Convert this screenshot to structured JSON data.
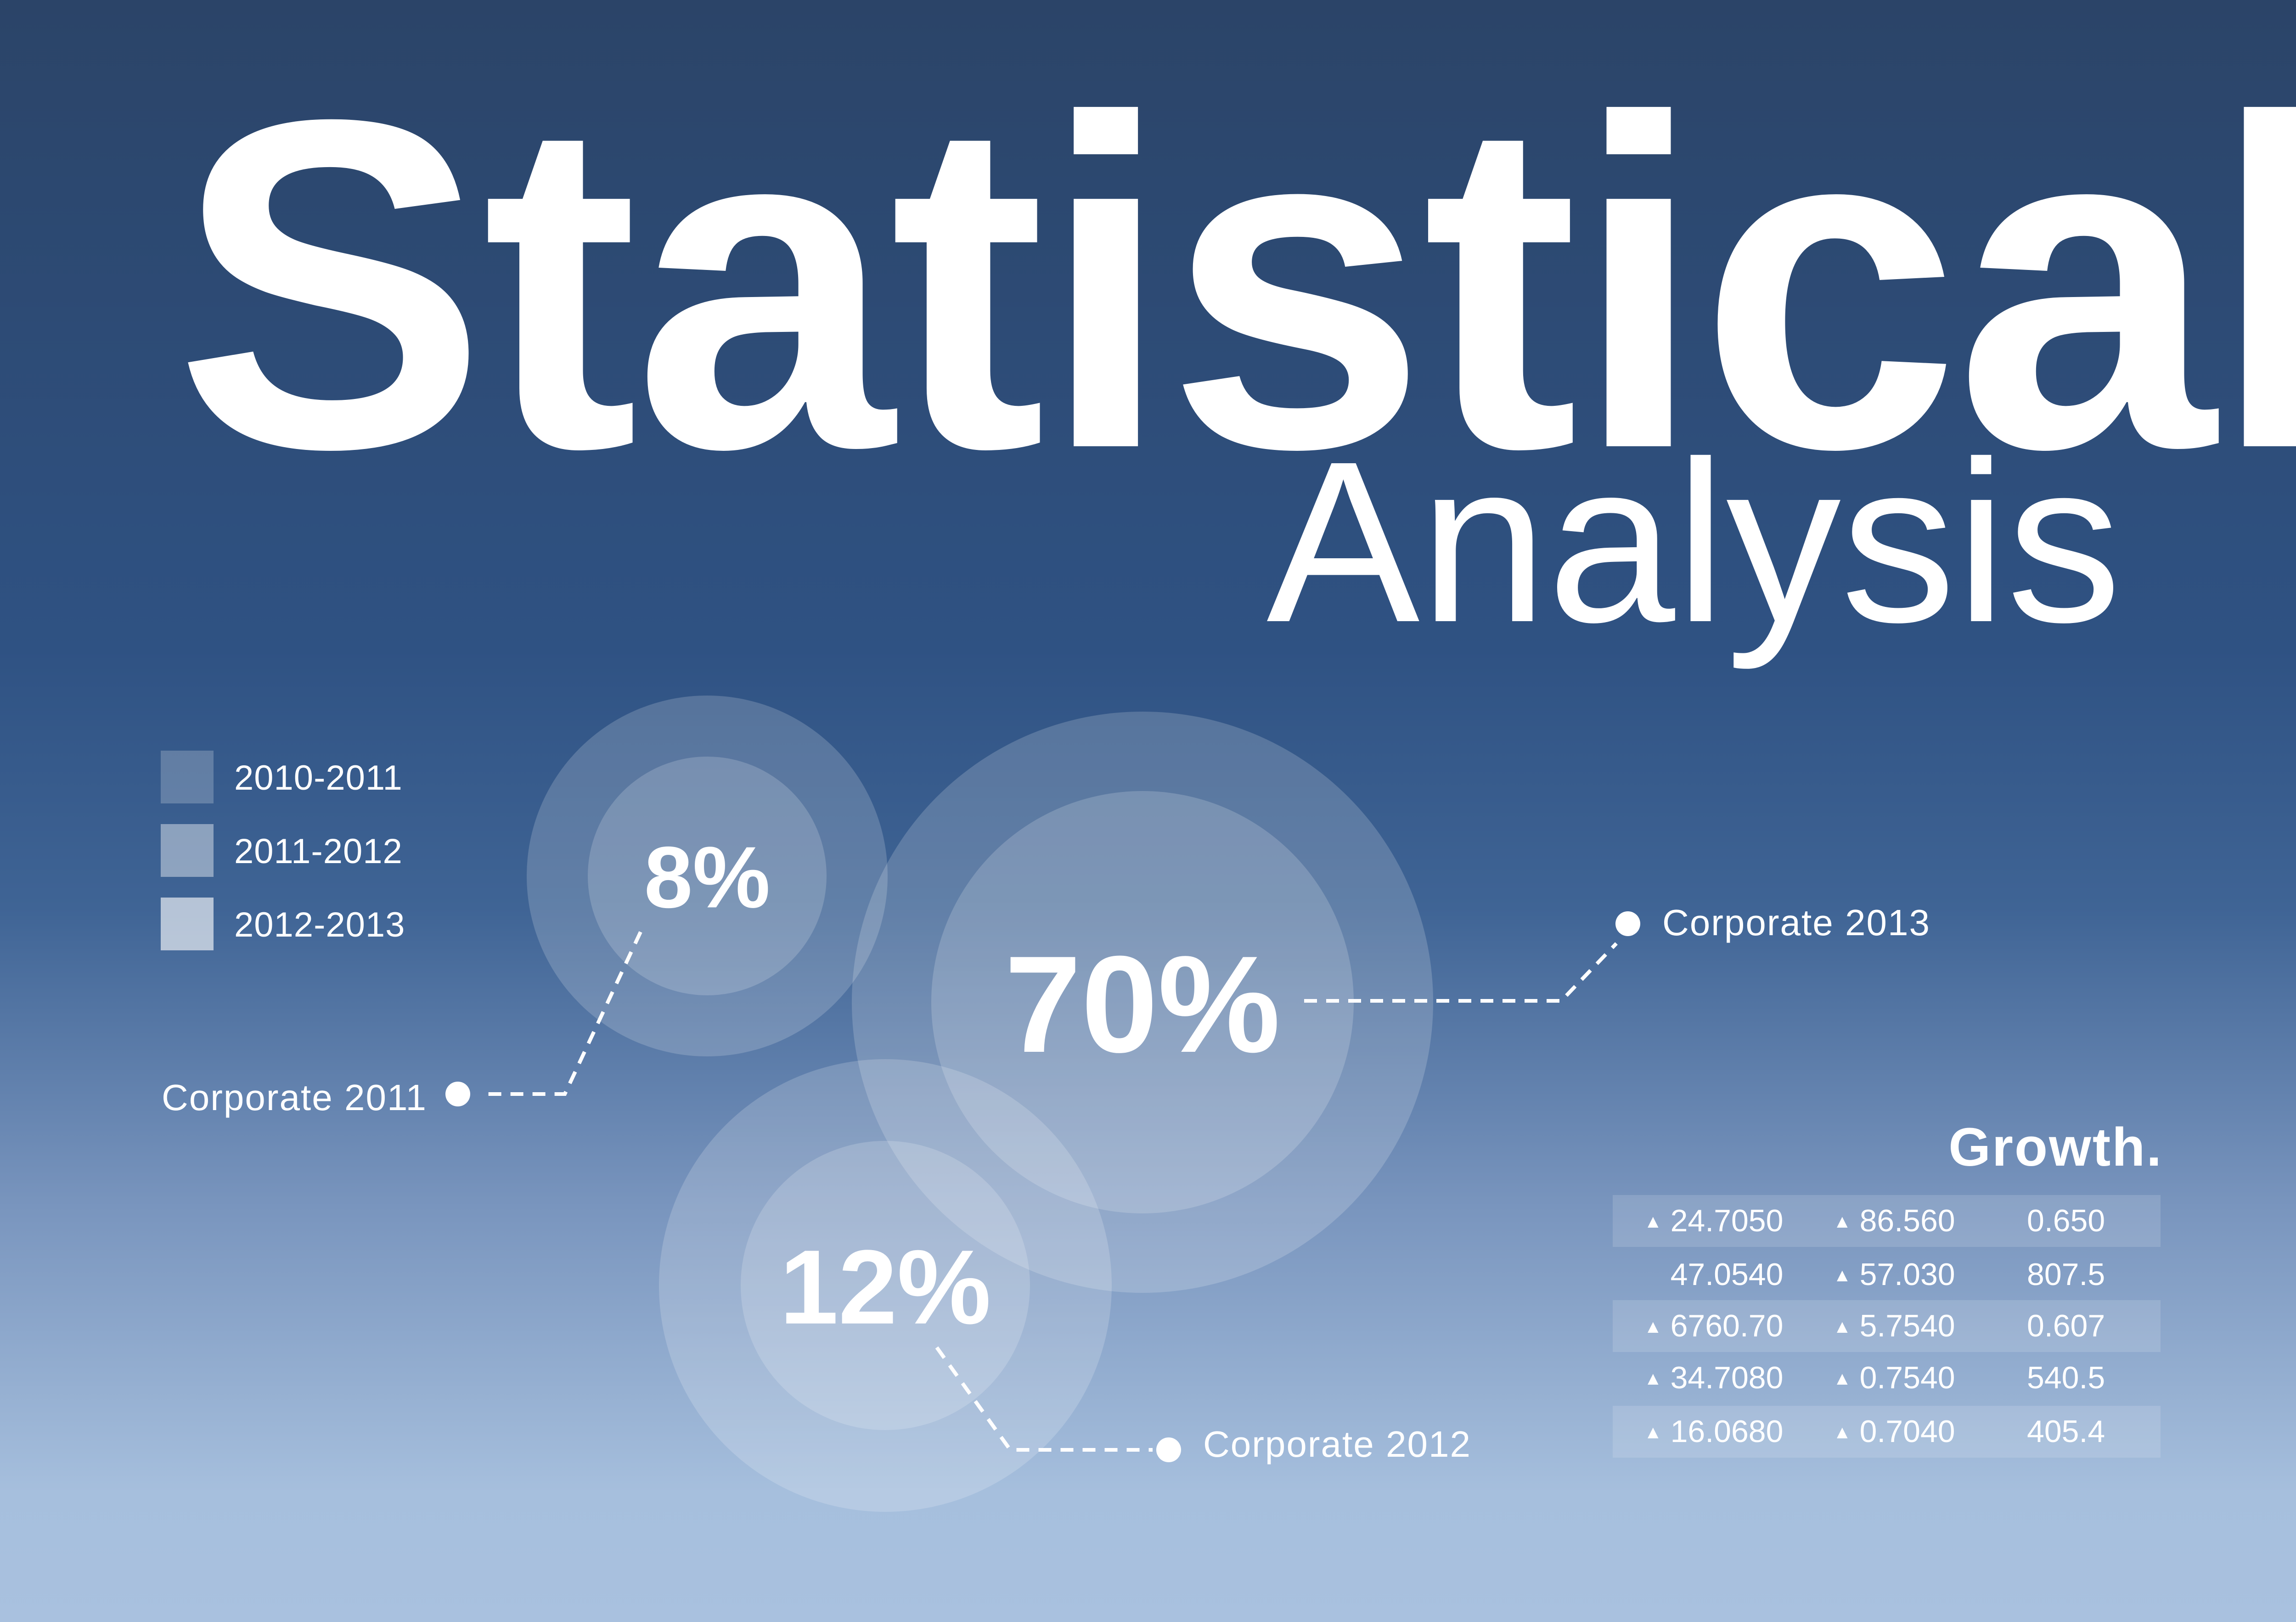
{
  "title": "Statistical",
  "subtitle": "Analysis",
  "colors": {
    "background_top": "#2b4468",
    "background_bottom": "#a9c1df",
    "text": "#ffffff"
  },
  "legend": [
    {
      "label": "2010-2011",
      "color": "rgba(255,255,255,0.22)"
    },
    {
      "label": "2011-2012",
      "color": "rgba(255,255,255,0.42)"
    },
    {
      "label": "2012-2013",
      "color": "rgba(255,255,255,0.62)"
    }
  ],
  "chart_data": {
    "type": "bubble",
    "title": "Statistical Analysis",
    "bubbles": [
      {
        "name": "Corporate 2011",
        "value": 8,
        "label": "8%"
      },
      {
        "name": "Corporate 2013",
        "value": 70,
        "label": "70%"
      },
      {
        "name": "Corporate 2012",
        "value": 12,
        "label": "12%"
      }
    ]
  },
  "growth": {
    "title": "Growth.",
    "rows": [
      {
        "c1": "24.7050",
        "c1_up": true,
        "c2": "86.560",
        "c2_up": true,
        "c3": "0.650"
      },
      {
        "c1": "47.0540",
        "c1_up": false,
        "c2": "57.030",
        "c2_up": true,
        "c3": "807.5"
      },
      {
        "c1": "6760.70",
        "c1_up": true,
        "c2": "5.7540",
        "c2_up": true,
        "c3": "0.607"
      },
      {
        "c1": "34.7080",
        "c1_up": true,
        "c2": "0.7540",
        "c2_up": true,
        "c3": "540.5"
      },
      {
        "c1": "16.0680",
        "c1_up": true,
        "c2": "0.7040",
        "c2_up": true,
        "c3": "405.4"
      }
    ],
    "up_icon": "triangle-up-icon"
  }
}
